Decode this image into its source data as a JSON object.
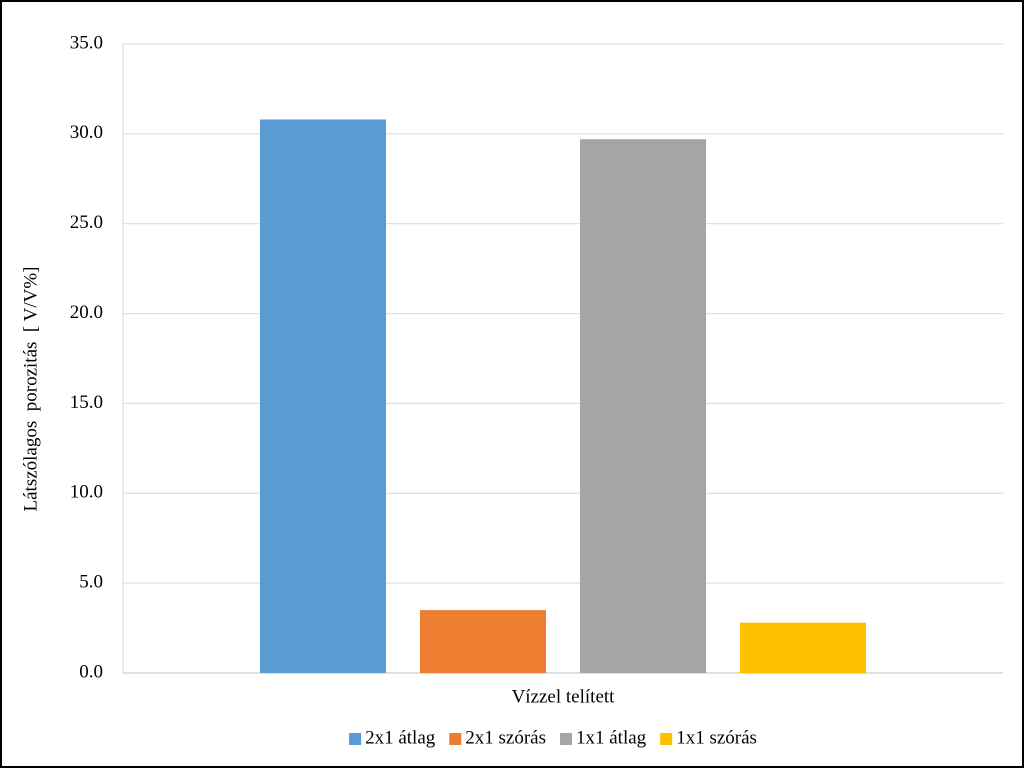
{
  "chart_data": {
    "type": "bar",
    "y_label": "Látszólagos  porozitás  [ V/V%]",
    "categories": [
      "Vízzel telített"
    ],
    "series": [
      {
        "name": "2x1 átlag",
        "color": "#5b9bd5",
        "values": [
          30.8
        ]
      },
      {
        "name": "2x1 szórás",
        "color": "#ed7d31",
        "values": [
          3.5
        ]
      },
      {
        "name": "1x1 átlag",
        "color": "#a5a5a5",
        "values": [
          29.7
        ]
      },
      {
        "name": "1x1 szórás",
        "color": "#ffc000",
        "values": [
          2.8
        ]
      }
    ],
    "ylim": [
      0,
      35
    ],
    "yticks": [
      {
        "value": 0,
        "label": "0.0"
      },
      {
        "value": 5,
        "label": "5.0"
      },
      {
        "value": 10,
        "label": "10.0"
      },
      {
        "value": 15,
        "label": "15.0"
      },
      {
        "value": 20,
        "label": "20.0"
      },
      {
        "value": 25,
        "label": "25.0"
      },
      {
        "value": 30,
        "label": "30.0"
      },
      {
        "value": 35,
        "label": "35.0"
      }
    ],
    "grid": true,
    "legend": "bottom"
  }
}
